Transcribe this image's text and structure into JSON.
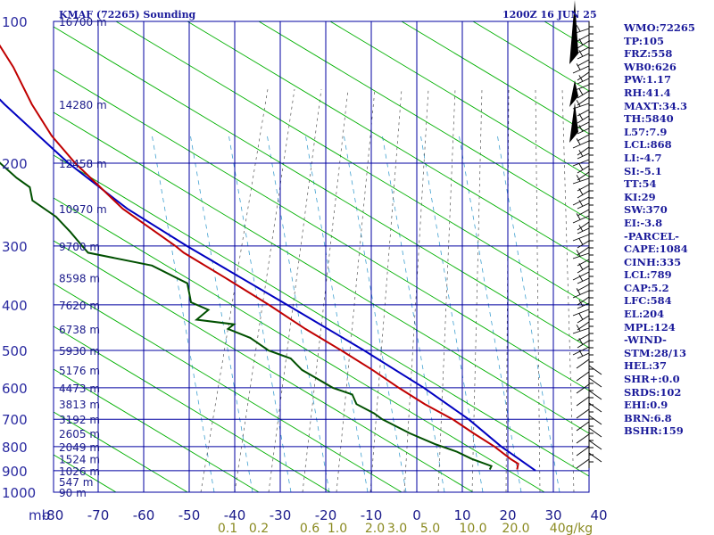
{
  "header": {
    "station": "KMAF (72265) Sounding",
    "time": "1200Z 16 JUN 25"
  },
  "indices": [
    "WMO:72265",
    "TP:105",
    "FRZ:558",
    "WB0:626",
    "PW:1.17",
    "RH:41.4",
    "MAXT:34.3",
    "TH:5840",
    "L57:7.9",
    "LCL:868",
    "LI:-4.7",
    "SI:-5.1",
    "TT:54",
    "KI:29",
    "SW:370",
    "EI:-3.8",
    "-PARCEL-",
    "CAPE:1084",
    "CINH:335",
    "LCL:789",
    "CAP:5.2",
    "LFC:584",
    "EL:204",
    "MPL:124",
    "-WIND-",
    "STM:28/13",
    "HEL:37",
    "SHR+:0.0",
    "SRDS:102",
    "EHI:0.9",
    "BRN:6.8",
    "BSHR:159"
  ],
  "colors": {
    "isobar": "#0000a0",
    "dry_adiabat": "#00b000",
    "moist_adiabat": "#555555",
    "mixing_ratio": "#40a0d0",
    "temperature": "#c00000",
    "dewpoint": "#005000",
    "parcel": "#0000c0",
    "wind_barb": "#000000",
    "index_text": "#1a1a9a"
  },
  "chart_data": {
    "type": "skew-t",
    "pressure_unit": "mb",
    "mixing_ratio_unit": "g/kg",
    "pressure_levels": [
      100,
      200,
      300,
      400,
      500,
      600,
      700,
      800,
      900,
      1000
    ],
    "height_labels": [
      {
        "p": 100,
        "text": "16700 m"
      },
      {
        "p": 150,
        "text": "14280 m"
      },
      {
        "p": 200,
        "text": "12458 m"
      },
      {
        "p": 250,
        "text": "10970 m"
      },
      {
        "p": 300,
        "text": "9700 m"
      },
      {
        "p": 350,
        "text": "8598 m"
      },
      {
        "p": 400,
        "text": "7620 m"
      },
      {
        "p": 450,
        "text": "6738 m"
      },
      {
        "p": 500,
        "text": "5930 m"
      },
      {
        "p": 550,
        "text": "5176 m"
      },
      {
        "p": 600,
        "text": "4473 m"
      },
      {
        "p": 650,
        "text": "3813 m"
      },
      {
        "p": 700,
        "text": "3192 m"
      },
      {
        "p": 750,
        "text": "2605 m"
      },
      {
        "p": 800,
        "text": "2049 m"
      },
      {
        "p": 850,
        "text": "1524 m"
      },
      {
        "p": 900,
        "text": "1026 m"
      },
      {
        "p": 950,
        "text": "547 m"
      },
      {
        "p": 1000,
        "text": "90 m"
      }
    ],
    "temperature_ticks": [
      "-80",
      "-70",
      "-60",
      "-50",
      "-40",
      "-30",
      "-20",
      "-10",
      "0",
      "10",
      "20",
      "30",
      "40"
    ],
    "mixing_ratio_ticks": [
      "0.1",
      "0.2",
      "0.6",
      "1.0",
      "2.0",
      "3.0",
      "5.0",
      "10.0",
      "20.0",
      "40g/kg"
    ],
    "temperature_profile": [
      {
        "p": 895,
        "t": 23.0
      },
      {
        "p": 870,
        "t": 23.5
      },
      {
        "p": 850,
        "t": 22.0
      },
      {
        "p": 800,
        "t": 19.0
      },
      {
        "p": 750,
        "t": 15.0
      },
      {
        "p": 700,
        "t": 11.0
      },
      {
        "p": 650,
        "t": 5.5
      },
      {
        "p": 600,
        "t": 0.5
      },
      {
        "p": 550,
        "t": -4.5
      },
      {
        "p": 500,
        "t": -10.5
      },
      {
        "p": 450,
        "t": -17.5
      },
      {
        "p": 400,
        "t": -24.5
      },
      {
        "p": 350,
        "t": -33.0
      },
      {
        "p": 310,
        "t": -41.0
      },
      {
        "p": 300,
        "t": -42.5
      },
      {
        "p": 250,
        "t": -52.5
      },
      {
        "p": 200,
        "t": -61.0
      },
      {
        "p": 175,
        "t": -65.0
      },
      {
        "p": 150,
        "t": -68.0
      },
      {
        "p": 125,
        "t": -70.5
      },
      {
        "p": 110,
        "t": -73.0
      },
      {
        "p": 100,
        "t": -75.0
      }
    ],
    "dewpoint_profile": [
      {
        "p": 895,
        "t": 17.0
      },
      {
        "p": 880,
        "t": 17.5
      },
      {
        "p": 850,
        "t": 13.5
      },
      {
        "p": 820,
        "t": 10.5
      },
      {
        "p": 790,
        "t": 6.0
      },
      {
        "p": 750,
        "t": 1.0
      },
      {
        "p": 700,
        "t": -4.5
      },
      {
        "p": 680,
        "t": -6.0
      },
      {
        "p": 650,
        "t": -9.5
      },
      {
        "p": 620,
        "t": -10.0
      },
      {
        "p": 600,
        "t": -14.0
      },
      {
        "p": 570,
        "t": -17.5
      },
      {
        "p": 550,
        "t": -20.0
      },
      {
        "p": 520,
        "t": -22.0
      },
      {
        "p": 500,
        "t": -26.5
      },
      {
        "p": 470,
        "t": -30.0
      },
      {
        "p": 450,
        "t": -34.5
      },
      {
        "p": 440,
        "t": -33.0
      },
      {
        "p": 430,
        "t": -41.0
      },
      {
        "p": 410,
        "t": -38.0
      },
      {
        "p": 395,
        "t": -41.5
      },
      {
        "p": 380,
        "t": -41.5
      },
      {
        "p": 360,
        "t": -41.5
      },
      {
        "p": 330,
        "t": -48.5
      },
      {
        "p": 310,
        "t": -62.0
      },
      {
        "p": 300,
        "t": -63.0
      },
      {
        "p": 280,
        "t": -65.0
      },
      {
        "p": 260,
        "t": -67.5
      },
      {
        "p": 240,
        "t": -72.0
      },
      {
        "p": 225,
        "t": -72.0
      },
      {
        "p": 215,
        "t": -74.5
      },
      {
        "p": 200,
        "t": -77.5
      },
      {
        "p": 175,
        "t": -82.5
      }
    ],
    "parcel_profile": [
      {
        "p": 900,
        "t": 27.0
      },
      {
        "p": 800,
        "t": 20.5
      },
      {
        "p": 700,
        "t": 14.5
      },
      {
        "p": 600,
        "t": 6.0
      },
      {
        "p": 500,
        "t": -5.5
      },
      {
        "p": 400,
        "t": -20.5
      },
      {
        "p": 300,
        "t": -40.0
      },
      {
        "p": 250,
        "t": -51.5
      },
      {
        "p": 200,
        "t": -62.5
      },
      {
        "p": 150,
        "t": -74.0
      },
      {
        "p": 125,
        "t": -80.5
      }
    ]
  }
}
